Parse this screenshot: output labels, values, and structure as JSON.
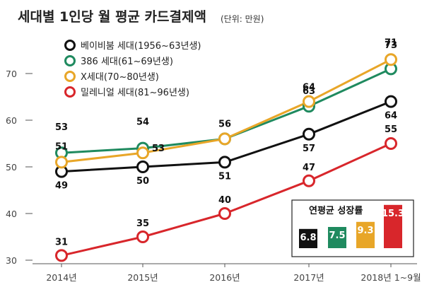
{
  "chart_data": {
    "type": "line",
    "title": "세대별 1인당 월 평균 카드결제액",
    "unit": "(단위: 만원)",
    "xlabel": "",
    "ylabel": "",
    "ylim": [
      30,
      75
    ],
    "yticks": [
      "70",
      "60",
      "50",
      "40",
      "30"
    ],
    "yticks_values": [
      70,
      60,
      50,
      40,
      30
    ],
    "categories": [
      "2014년",
      "2015년",
      "2016년",
      "2017년",
      "2018년 1~9월"
    ],
    "series": [
      {
        "name": "베이비붐 세대(1956~63년생)",
        "color": "#111111",
        "values": [
          49,
          50,
          51,
          57,
          64
        ],
        "labels": [
          "49",
          "50",
          "51",
          "57",
          "64"
        ]
      },
      {
        "name": "386 세대(61~69년생)",
        "color": "#1f8a5f",
        "values": [
          53,
          54,
          56,
          63,
          71
        ],
        "labels": [
          "53",
          "54",
          "",
          "63",
          "71"
        ]
      },
      {
        "name": "X세대(70~80년생)",
        "color": "#e8a628",
        "values": [
          51,
          53,
          56,
          64,
          73
        ],
        "labels": [
          "51",
          "53",
          "56",
          "64",
          "73"
        ]
      },
      {
        "name": "밀레니얼 세대(81~96년생)",
        "color": "#d8262b",
        "values": [
          31,
          35,
          40,
          47,
          55
        ],
        "labels": [
          "31",
          "35",
          "40",
          "47",
          "55"
        ]
      }
    ],
    "grid": false,
    "legend_position": "top-left",
    "inset": {
      "title": "연평균 성장률",
      "type": "bar",
      "values": [
        6.8,
        7.5,
        9.3,
        15.3
      ],
      "labels": [
        "6.8",
        "7.5",
        "9.3",
        "15.3"
      ],
      "colors": [
        "#111111",
        "#1f8a5f",
        "#e8a628",
        "#d8262b"
      ]
    }
  }
}
